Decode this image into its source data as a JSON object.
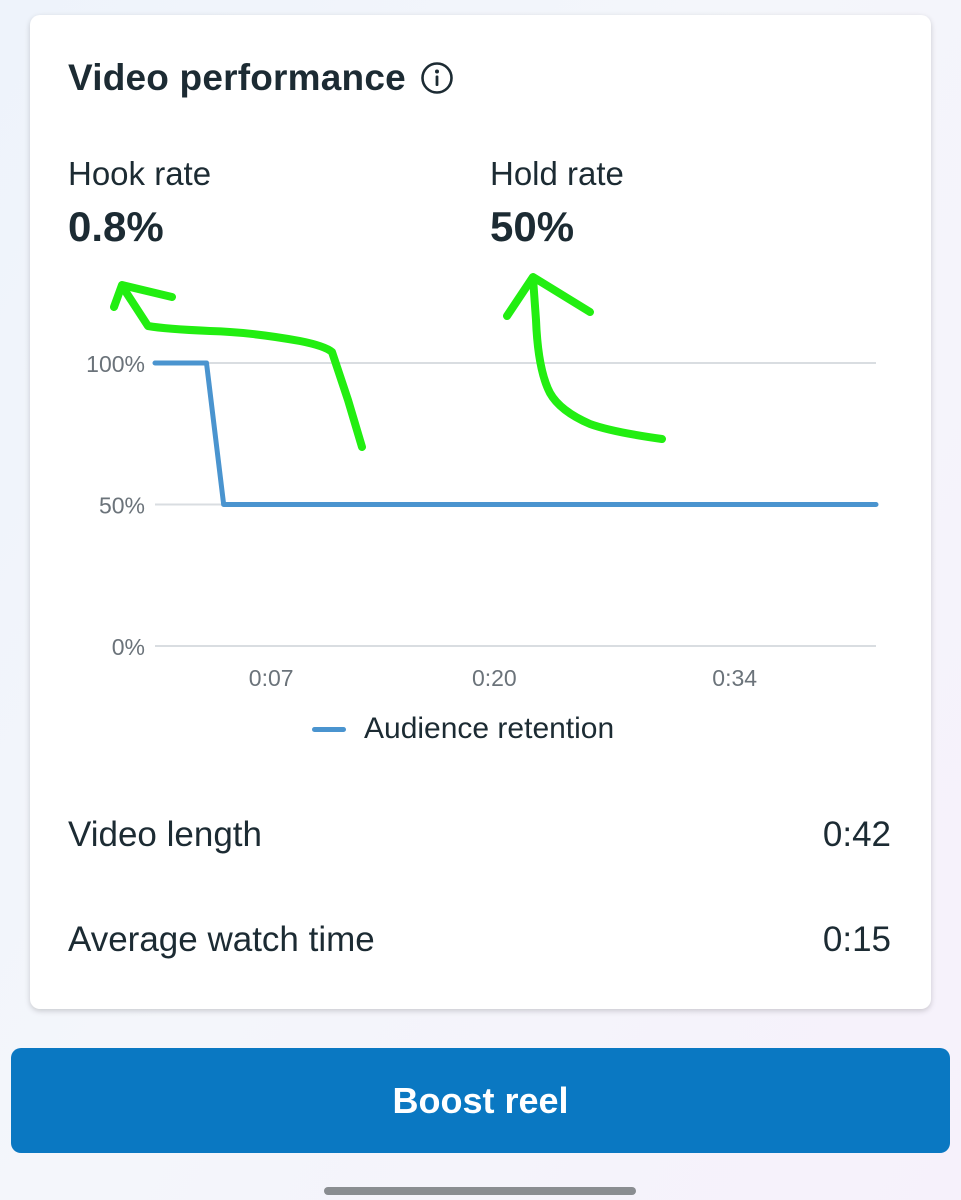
{
  "card": {
    "title": "Video performance",
    "info_icon": "info-circle-icon"
  },
  "metrics": {
    "hook": {
      "label": "Hook rate",
      "value": "0.8%"
    },
    "hold": {
      "label": "Hold rate",
      "value": "50%"
    }
  },
  "chart_data": {
    "type": "line",
    "y_tick_labels": [
      "100%",
      "50%",
      "0%"
    ],
    "x_tick_labels": [
      "0:07",
      "0:20",
      "0:34"
    ],
    "ylim": [
      0,
      100
    ],
    "xlim": [
      0,
      42
    ],
    "grid": true,
    "legend_position": "bottom",
    "series": [
      {
        "name": "Audience retention",
        "color": "#4a94cf",
        "x": [
          0,
          3,
          4,
          42
        ],
        "values": [
          100,
          100,
          50,
          50
        ]
      }
    ]
  },
  "stats": {
    "video_length": {
      "label": "Video length",
      "value": "0:42"
    },
    "average_watch_time": {
      "label": "Average watch time",
      "value": "0:15"
    }
  },
  "boost_button": {
    "label": "Boost reel",
    "color": "#0a78c2"
  },
  "annotation_color": "#22ee11"
}
